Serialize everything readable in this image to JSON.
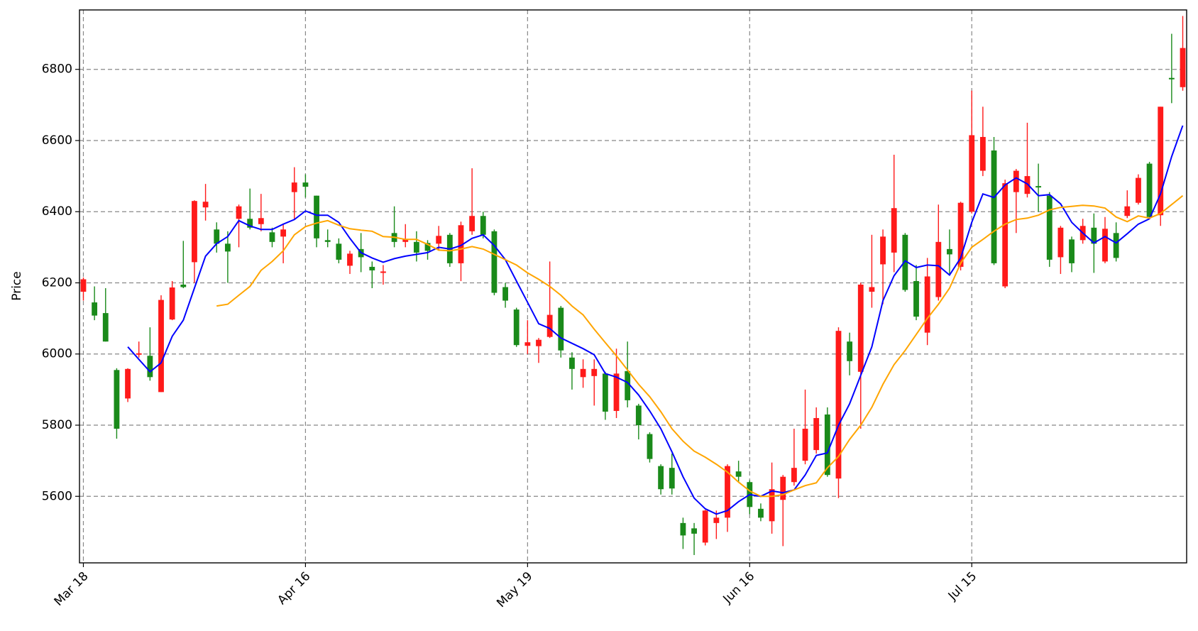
{
  "chart_data": {
    "type": "candlestick",
    "y_label": "Price",
    "categories": [
      "Mar 18",
      null,
      null,
      null,
      null,
      null,
      null,
      null,
      null,
      null,
      null,
      null,
      null,
      null,
      null,
      null,
      null,
      null,
      null,
      null,
      "Apr 16",
      null,
      null,
      null,
      null,
      null,
      null,
      null,
      null,
      null,
      null,
      null,
      null,
      null,
      null,
      null,
      null,
      null,
      null,
      null,
      "May 19",
      null,
      null,
      null,
      null,
      null,
      null,
      null,
      null,
      null,
      null,
      null,
      null,
      null,
      null,
      null,
      null,
      null,
      null,
      null,
      "Jun 16",
      null,
      null,
      null,
      null,
      null,
      null,
      null,
      null,
      null,
      null,
      null,
      null,
      null,
      null,
      null,
      null,
      null,
      null,
      null,
      "Jul 15",
      null,
      null,
      null,
      null,
      null,
      null,
      null,
      null,
      null,
      null,
      null,
      null,
      null,
      null,
      null,
      null,
      null,
      null,
      null
    ],
    "open": [
      6175,
      6145,
      6115,
      5955,
      5875,
      5998,
      5995,
      5893,
      6097,
      6195,
      6258,
      6412,
      6350,
      6310,
      6380,
      6380,
      6365,
      6342,
      6330,
      6455,
      6482,
      6445,
      6320,
      6310,
      6248,
      6295,
      6245,
      6228,
      6340,
      6315,
      6315,
      6312,
      6310,
      6335,
      6255,
      6345,
      6388,
      6345,
      6188,
      6125,
      6023,
      6022,
      6048,
      6130,
      5990,
      5935,
      5938,
      5945,
      5840,
      5952,
      5855,
      5775,
      5685,
      5680,
      5525,
      5510,
      5470,
      5525,
      5540,
      5670,
      5640,
      5565,
      5530,
      5590,
      5640,
      5700,
      5730,
      5830,
      5650,
      6035,
      5950,
      6175,
      6252,
      6285,
      6335,
      6205,
      6060,
      6160,
      6295,
      6245,
      6400,
      6515,
      6572,
      6190,
      6455,
      6450,
      6472,
      6445,
      6272,
      6322,
      6320,
      6355,
      6260,
      6340,
      6388,
      6425,
      6535,
      6390,
      6776,
      6750
    ],
    "high": [
      6215,
      6190,
      6185,
      5960,
      5960,
      6035,
      6075,
      6165,
      6205,
      6318,
      6432,
      6478,
      6370,
      6345,
      6420,
      6465,
      6450,
      6355,
      6365,
      6525,
      6505,
      6445,
      6350,
      6325,
      6290,
      6340,
      6260,
      6250,
      6415,
      6365,
      6345,
      6320,
      6360,
      6340,
      6372,
      6522,
      6400,
      6350,
      6200,
      6130,
      6095,
      6045,
      6260,
      6135,
      6005,
      5985,
      5985,
      5950,
      6015,
      6035,
      5860,
      5780,
      5690,
      5720,
      5540,
      5525,
      5562,
      5560,
      5690,
      5700,
      5645,
      5580,
      5695,
      5660,
      5790,
      5900,
      5850,
      5850,
      6075,
      6060,
      6200,
      6335,
      6350,
      6560,
      6340,
      6250,
      6270,
      6420,
      6350,
      6428,
      6740,
      6695,
      6610,
      6490,
      6520,
      6650,
      6535,
      6455,
      6360,
      6330,
      6380,
      6395,
      6385,
      6370,
      6460,
      6505,
      6540,
      6695,
      6900,
      6950
    ],
    "low": [
      6150,
      6095,
      6035,
      5762,
      5865,
      5990,
      5925,
      5893,
      6095,
      6185,
      6200,
      6375,
      6285,
      6200,
      6300,
      6350,
      6345,
      6300,
      6255,
      6380,
      6440,
      6300,
      6300,
      6255,
      6225,
      6230,
      6185,
      6195,
      6300,
      6300,
      6260,
      6265,
      6290,
      6245,
      6205,
      6335,
      6325,
      6165,
      6130,
      6020,
      6000,
      5975,
      6045,
      5990,
      5900,
      5905,
      5855,
      5815,
      5820,
      5850,
      5760,
      5695,
      5605,
      5605,
      5452,
      5435,
      5462,
      5480,
      5500,
      5640,
      5550,
      5530,
      5495,
      5460,
      5630,
      5690,
      5720,
      5655,
      5595,
      5940,
      5790,
      6130,
      6140,
      6230,
      6175,
      6095,
      6025,
      6150,
      6225,
      6235,
      6395,
      6500,
      6250,
      6185,
      6340,
      6440,
      6400,
      6245,
      6225,
      6230,
      6310,
      6228,
      6255,
      6260,
      6382,
      6420,
      6380,
      6360,
      6705,
      6740
    ],
    "close": [
      6210,
      6108,
      6035,
      5790,
      5958,
      6002,
      5935,
      6152,
      6187,
      6188,
      6430,
      6428,
      6310,
      6288,
      6415,
      6355,
      6382,
      6315,
      6350,
      6482,
      6470,
      6325,
      6315,
      6265,
      6282,
      6272,
      6235,
      6232,
      6315,
      6322,
      6285,
      6290,
      6332,
      6255,
      6362,
      6388,
      6335,
      6172,
      6150,
      6025,
      6033,
      6040,
      6110,
      6010,
      5958,
      5958,
      5958,
      5838,
      5945,
      5870,
      5800,
      5705,
      5620,
      5622,
      5490,
      5495,
      5560,
      5540,
      5685,
      5655,
      5570,
      5540,
      5620,
      5655,
      5680,
      5790,
      5820,
      5660,
      6065,
      5980,
      6195,
      6188,
      6330,
      6410,
      6180,
      6105,
      6218,
      6315,
      6280,
      6425,
      6615,
      6610,
      6255,
      6480,
      6515,
      6500,
      6468,
      6265,
      6355,
      6255,
      6360,
      6310,
      6352,
      6270,
      6415,
      6495,
      6385,
      6695,
      6772,
      6860
    ],
    "up_color": "#ff1a1a",
    "down_color": "#1a8a1a",
    "lines": [
      {
        "color": "#0000ff",
        "values": [
          null,
          null,
          null,
          null,
          6020,
          5985,
          5950,
          5975,
          6050,
          6095,
          6185,
          6275,
          6310,
          6330,
          6375,
          6360,
          6350,
          6350,
          6365,
          6378,
          6402,
          6390,
          6390,
          6370,
          6325,
          6285,
          6270,
          6258,
          6268,
          6275,
          6280,
          6285,
          6300,
          6295,
          6305,
          6325,
          6335,
          6305,
          6265,
          6205,
          6145,
          6085,
          6072,
          6045,
          6030,
          6015,
          5998,
          5945,
          5935,
          5920,
          5885,
          5840,
          5790,
          5725,
          5655,
          5595,
          5565,
          5550,
          5560,
          5585,
          5605,
          5600,
          5615,
          5610,
          5618,
          5660,
          5715,
          5722,
          5800,
          5860,
          5940,
          6020,
          6150,
          6220,
          6262,
          6243,
          6250,
          6248,
          6222,
          6270,
          6370,
          6450,
          6440,
          6475,
          6495,
          6478,
          6445,
          6448,
          6422,
          6370,
          6340,
          6312,
          6330,
          6312,
          6338,
          6365,
          6380,
          6450,
          6555,
          6642
        ]
      },
      {
        "color": "#ffa500",
        "values": [
          null,
          null,
          null,
          null,
          null,
          null,
          null,
          null,
          null,
          null,
          null,
          null,
          6135,
          6140,
          6165,
          6190,
          6235,
          6260,
          6290,
          6335,
          6358,
          6368,
          6375,
          6362,
          6352,
          6348,
          6345,
          6330,
          6328,
          6322,
          6322,
          6308,
          6292,
          6290,
          6295,
          6302,
          6295,
          6280,
          6265,
          6250,
          6228,
          6210,
          6190,
          6165,
          6135,
          6110,
          6070,
          6032,
          5995,
          5955,
          5915,
          5880,
          5838,
          5790,
          5755,
          5727,
          5710,
          5690,
          5668,
          5640,
          5615,
          5600,
          5600,
          5605,
          5618,
          5630,
          5638,
          5680,
          5712,
          5760,
          5800,
          5850,
          5915,
          5970,
          6010,
          6055,
          6100,
          6140,
          6185,
          6255,
          6300,
          6322,
          6345,
          6365,
          6378,
          6382,
          6390,
          6405,
          6412,
          6415,
          6418,
          6416,
          6410,
          6385,
          6372,
          6388,
          6382,
          6395,
          6420,
          6445
        ]
      }
    ],
    "ylim": [
      5413,
      6967
    ],
    "yticks": [
      5600,
      5800,
      6000,
      6200,
      6400,
      6600,
      6800
    ],
    "grid": true
  }
}
